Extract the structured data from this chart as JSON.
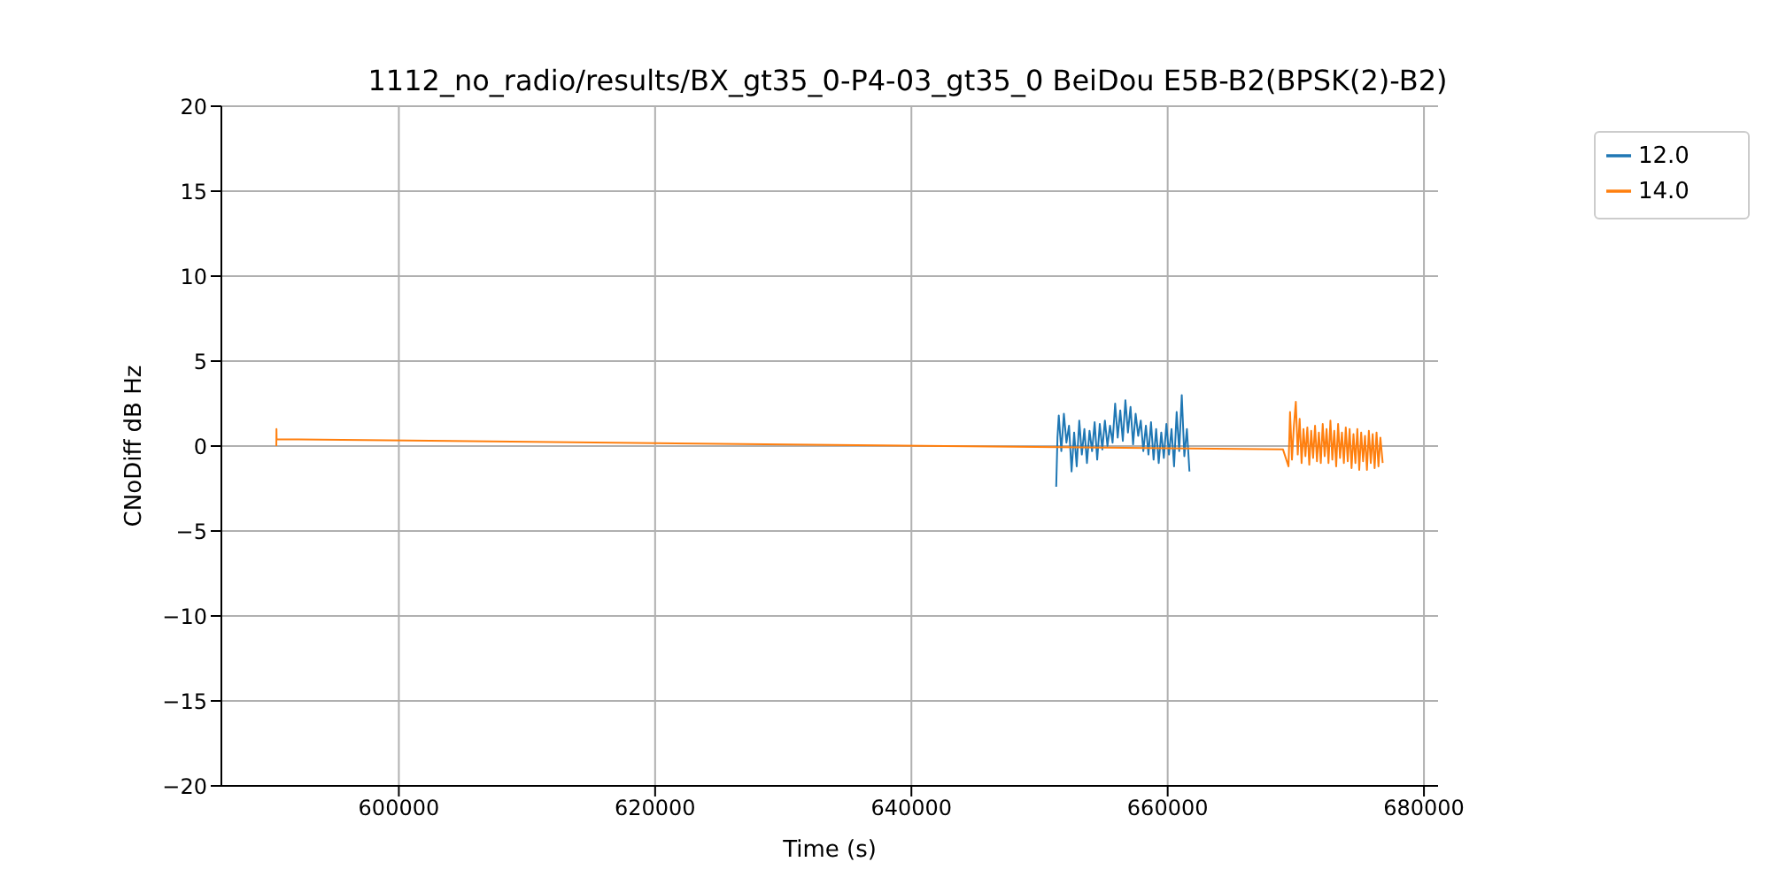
{
  "chart_data": {
    "type": "line",
    "title": "1112_no_radio/results/BX_gt35_0-P4-03_gt35_0 BeiDou E5B-B2(BPSK(2)-B2)",
    "xlabel": "Time (s)",
    "ylabel": "CNoDiff dB Hz",
    "xlim": [
      586150,
      681100
    ],
    "xticks": [
      600000,
      620000,
      640000,
      660000,
      680000
    ],
    "ylim": [
      -20,
      20
    ],
    "yticks": [
      -20,
      -15,
      -10,
      -5,
      0,
      5,
      10,
      15,
      20
    ],
    "grid": true,
    "legend": "top right",
    "marker": "none",
    "line_style": "solid",
    "series": [
      {
        "name": "12.0",
        "color": "#1f77b4",
        "x": [
          651300,
          651400,
          651500,
          651700,
          651900,
          652100,
          652300,
          652500,
          652700,
          652900,
          653100,
          653300,
          653500,
          653700,
          653900,
          654100,
          654300,
          654500,
          654700,
          654900,
          655100,
          655300,
          655500,
          655700,
          655900,
          656100,
          656300,
          656500,
          656700,
          656900,
          657100,
          657300,
          657500,
          657700,
          657900,
          658100,
          658300,
          658500,
          658700,
          658900,
          659100,
          659300,
          659500,
          659700,
          659900,
          660100,
          660300,
          660500,
          660700,
          660900,
          661100,
          661300,
          661500,
          661700
        ],
        "values": [
          -2.4,
          0.5,
          1.8,
          -0.3,
          1.9,
          0.2,
          1.2,
          -1.5,
          0.8,
          -1.2,
          1.5,
          -0.5,
          1.0,
          -1.0,
          0.9,
          -0.3,
          1.4,
          -0.8,
          1.3,
          -0.2,
          1.5,
          0.0,
          1.2,
          0.2,
          2.5,
          0.5,
          2.1,
          0.3,
          2.7,
          0.8,
          2.3,
          0.1,
          1.9,
          0.6,
          1.5,
          -0.3,
          1.2,
          -0.5,
          1.4,
          -0.8,
          1.0,
          -1.0,
          0.8,
          -0.7,
          1.3,
          -0.5,
          1.0,
          -1.2,
          2.0,
          -0.3,
          3.0,
          -0.6,
          1.0,
          -1.5
        ]
      },
      {
        "name": "14.0",
        "color": "#ff7f0e",
        "x": [
          590440,
          590450,
          590460,
          669000,
          669430,
          669550,
          669700,
          669850,
          670000,
          670150,
          670300,
          670450,
          670600,
          670750,
          670900,
          671050,
          671200,
          671350,
          671500,
          671650,
          671800,
          671950,
          672100,
          672250,
          672400,
          672550,
          672700,
          672850,
          673000,
          673150,
          673300,
          673450,
          673600,
          673750,
          673900,
          674050,
          674200,
          674350,
          674500,
          674650,
          674800,
          674950,
          675100,
          675250,
          675400,
          675550,
          675700,
          675850,
          676000,
          676150,
          676300,
          676450,
          676600,
          676780
        ],
        "values": [
          0,
          1.0,
          0.4,
          -0.2,
          -1.2,
          2.0,
          -0.8,
          1.2,
          2.6,
          -0.5,
          1.6,
          -1.0,
          1.0,
          -0.6,
          1.1,
          -1.1,
          0.9,
          -0.7,
          1.2,
          -0.9,
          0.8,
          -1.0,
          1.3,
          -0.6,
          1.0,
          -1.0,
          1.5,
          -0.8,
          0.9,
          -1.2,
          1.3,
          -0.7,
          0.8,
          -1.0,
          1.1,
          -0.9,
          1.0,
          -1.3,
          0.7,
          -1.0,
          1.0,
          -1.4,
          0.8,
          -0.9,
          0.6,
          -1.4,
          0.9,
          -1.0,
          0.7,
          -1.3,
          0.8,
          -1.2,
          0.5,
          -1.0
        ]
      }
    ]
  }
}
